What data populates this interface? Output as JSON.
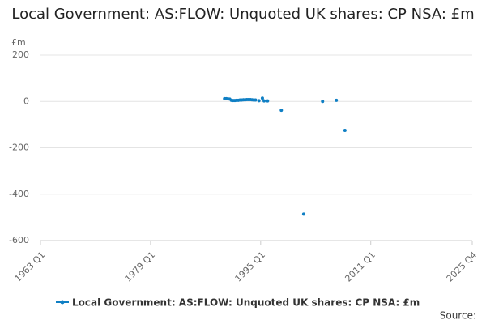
{
  "chart_data": {
    "type": "line",
    "title": "Local Government: AS:FLOW: Unquoted UK shares: CP NSA: £m",
    "y_unit": "£m",
    "source": "Source:",
    "x": [
      "1989 Q4",
      "1990 Q1",
      "1990 Q2",
      "1990 Q3",
      "1990 Q4",
      "1991 Q1",
      "1991 Q2",
      "1991 Q3",
      "1991 Q4",
      "1992 Q1",
      "1992 Q2",
      "1992 Q3",
      "1992 Q4",
      "1993 Q1",
      "1993 Q2",
      "1993 Q3",
      "1993 Q4",
      "1994 Q1",
      "1994 Q2",
      "1994 Q3",
      "1994 Q4",
      "1995 Q1",
      "1995 Q2",
      "1995 Q3",
      "1995 Q4",
      "1996 Q1",
      "1996 Q2",
      "1998 Q1",
      "1998 Q2",
      "2001 Q2",
      "2001 Q3",
      "2004 Q1",
      "2004 Q2",
      "2006 Q1",
      "2006 Q2",
      "2007 Q2"
    ],
    "series": [
      {
        "name": "Local Government: AS:FLOW: Unquoted UK shares: CP NSA: £m",
        "color": "#0f7fc4",
        "values": [
          12,
          12,
          11,
          10,
          5,
          4,
          4,
          5,
          5,
          6,
          6,
          7,
          7,
          8,
          8,
          8,
          7,
          6,
          6,
          null,
          3,
          null,
          14,
          2,
          null,
          2,
          null,
          -38,
          null,
          -486,
          null,
          0,
          null,
          5,
          null,
          -125
        ]
      }
    ],
    "xlim": [
      "1963 Q1",
      "2025 Q4"
    ],
    "xticks": [
      "1963 Q1",
      "1979 Q1",
      "1995 Q1",
      "2011 Q1",
      "2025 Q4"
    ],
    "ylim": [
      -600,
      200
    ],
    "yticks": [
      200,
      0,
      -200,
      -400,
      -600
    ],
    "grid": true
  }
}
